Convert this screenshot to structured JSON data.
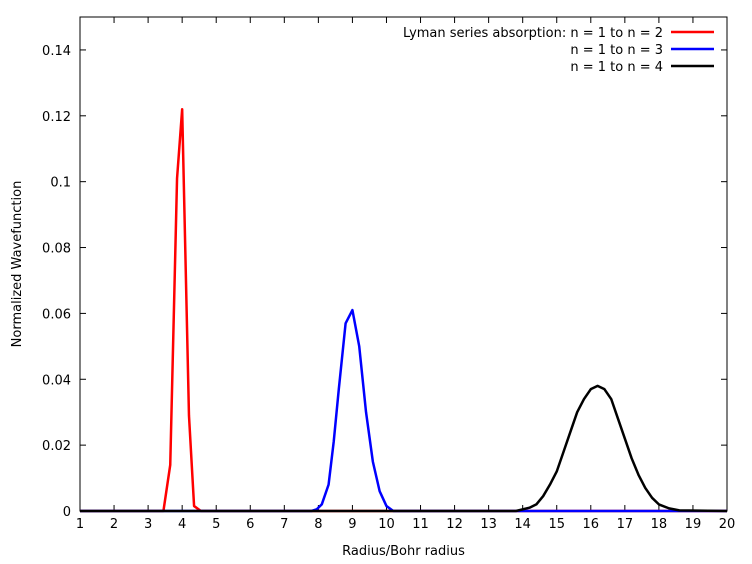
{
  "chart_data": {
    "type": "line",
    "title": "",
    "xlabel": "Radius/Bohr radius",
    "ylabel": "Normalized Wavefunction",
    "xlim": [
      1,
      20
    ],
    "ylim": [
      0,
      0.15
    ],
    "x_ticks": [
      1,
      2,
      3,
      4,
      5,
      6,
      7,
      8,
      9,
      10,
      11,
      12,
      13,
      14,
      15,
      16,
      17,
      18,
      19,
      20
    ],
    "y_ticks": [
      0,
      0.02,
      0.04,
      0.06,
      0.08,
      0.1,
      0.12,
      0.14
    ],
    "y_tick_labels": [
      "0",
      "0.02",
      "0.04",
      "0.06",
      "0.08",
      "0.1",
      "0.12",
      "0.14"
    ],
    "grid": false,
    "legend_position": "top-right",
    "legend_title": "Lyman series absorption:",
    "series": [
      {
        "name": "n = 1 to n = 2",
        "color": "#ff0000",
        "x": [
          1,
          3.3,
          3.45,
          3.65,
          3.85,
          4.0,
          4.2,
          4.35,
          4.55,
          5.0,
          20
        ],
        "y": [
          0,
          0,
          0,
          0.014,
          0.101,
          0.122,
          0.029,
          0.0015,
          0,
          0,
          0
        ]
      },
      {
        "name": "n = 1 to n = 3",
        "color": "#0000ff",
        "x": [
          1,
          7.8,
          7.95,
          8.1,
          8.3,
          8.45,
          8.6,
          8.8,
          9.0,
          9.2,
          9.4,
          9.6,
          9.8,
          10.0,
          10.2,
          20
        ],
        "y": [
          0,
          0,
          0.0005,
          0.002,
          0.008,
          0.021,
          0.037,
          0.057,
          0.061,
          0.05,
          0.03,
          0.015,
          0.006,
          0.0015,
          0,
          0
        ]
      },
      {
        "name": "n = 1 to n = 4",
        "color": "#000000",
        "x": [
          1,
          13.8,
          14.0,
          14.2,
          14.4,
          14.6,
          14.8,
          15.0,
          15.2,
          15.4,
          15.6,
          15.8,
          16.0,
          16.2,
          16.4,
          16.6,
          16.8,
          17.0,
          17.2,
          17.4,
          17.6,
          17.8,
          18.0,
          18.3,
          18.6,
          20
        ],
        "y": [
          0,
          0,
          0.0005,
          0.001,
          0.002,
          0.0045,
          0.008,
          0.012,
          0.018,
          0.024,
          0.03,
          0.034,
          0.037,
          0.038,
          0.037,
          0.034,
          0.028,
          0.022,
          0.016,
          0.011,
          0.007,
          0.004,
          0.002,
          0.0008,
          0.0002,
          0
        ]
      }
    ]
  }
}
